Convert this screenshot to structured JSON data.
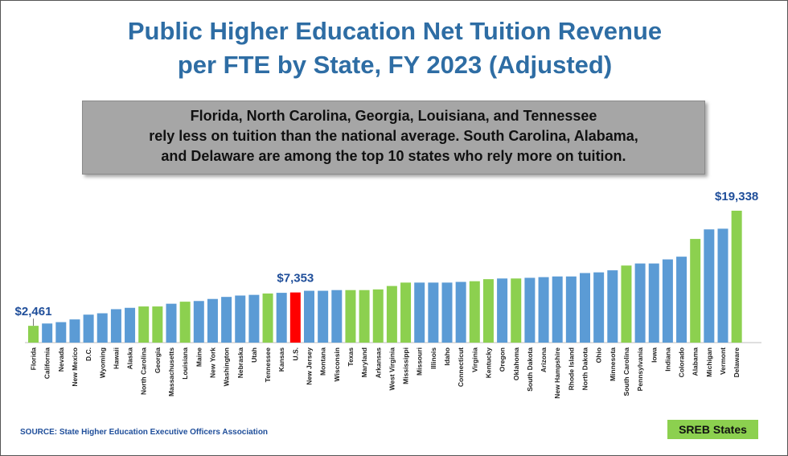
{
  "title_line1": "Public Higher Education Net Tuition Revenue",
  "title_line2": "per FTE by State, FY 2023 (Adjusted)",
  "callout": {
    "line1": "Florida, North Carolina, Georgia, Louisiana, and Tennessee",
    "line2": "rely less on tuition than the national average. South Carolina, Alabama,",
    "line3": "and Delaware are among the top 10 states who rely more on tuition."
  },
  "source": "SOURCE: State Higher Education Executive Officers Association",
  "legend_label": "SREB States",
  "colors": {
    "sreb": "#8cd04f",
    "other": "#5b9bd5",
    "us": "#ff0000",
    "title": "#2e6da4",
    "value_label": "#1f4e9a"
  },
  "chart_data": {
    "type": "bar",
    "ylim": [
      0,
      19338
    ],
    "categories": [
      "Florida",
      "California",
      "Nevada",
      "New Mexico",
      "D.C.",
      "Wyoming",
      "Hawaii",
      "Alaska",
      "North Carolina",
      "Georgia",
      "Massachusetts",
      "Louisiana",
      "Maine",
      "New York",
      "Washington",
      "Nebraska",
      "Utah",
      "Tennessee",
      "Kansas",
      "U.S.",
      "New Jersey",
      "Montana",
      "Wisconsin",
      "Texas",
      "Maryland",
      "Arkansas",
      "West Virginia",
      "Mississippi",
      "Missouri",
      "Illinois",
      "Idaho",
      "Connecticut",
      "Virginia",
      "Kentucky",
      "Oregon",
      "Oklahoma",
      "South Dakota",
      "Arizona",
      "New Hampshire",
      "Rhode Island",
      "North Dakota",
      "Ohio",
      "Minnesota",
      "South Carolina",
      "Pennsylvania",
      "Iowa",
      "Indiana",
      "Colorado",
      "Alabama",
      "Michigan",
      "Vermont",
      "Delaware"
    ],
    "values": [
      2461,
      2800,
      3000,
      3400,
      4100,
      4300,
      4900,
      5100,
      5300,
      5300,
      5700,
      6000,
      6100,
      6400,
      6700,
      6900,
      7000,
      7200,
      7300,
      7353,
      7600,
      7600,
      7700,
      7700,
      7700,
      7800,
      8300,
      8800,
      8800,
      8800,
      8800,
      8900,
      9000,
      9300,
      9400,
      9400,
      9500,
      9600,
      9700,
      9700,
      10200,
      10300,
      10600,
      11300,
      11600,
      11600,
      12200,
      12600,
      15200,
      16600,
      16700,
      19338
    ],
    "groups": [
      "SREB",
      "other",
      "other",
      "other",
      "other",
      "other",
      "other",
      "other",
      "SREB",
      "SREB",
      "other",
      "SREB",
      "other",
      "other",
      "other",
      "other",
      "other",
      "SREB",
      "other",
      "US",
      "other",
      "other",
      "other",
      "SREB",
      "SREB",
      "SREB",
      "SREB",
      "SREB",
      "other",
      "other",
      "other",
      "other",
      "SREB",
      "SREB",
      "other",
      "SREB",
      "other",
      "other",
      "other",
      "other",
      "other",
      "other",
      "other",
      "SREB",
      "other",
      "other",
      "other",
      "other",
      "SREB",
      "other",
      "other",
      "SREB"
    ],
    "value_labels": [
      {
        "category": "Florida",
        "text": "$2,461"
      },
      {
        "category": "U.S.",
        "text": "$7,353"
      },
      {
        "category": "Delaware",
        "text": "$19,338"
      }
    ],
    "legend": [
      "SREB States"
    ]
  }
}
